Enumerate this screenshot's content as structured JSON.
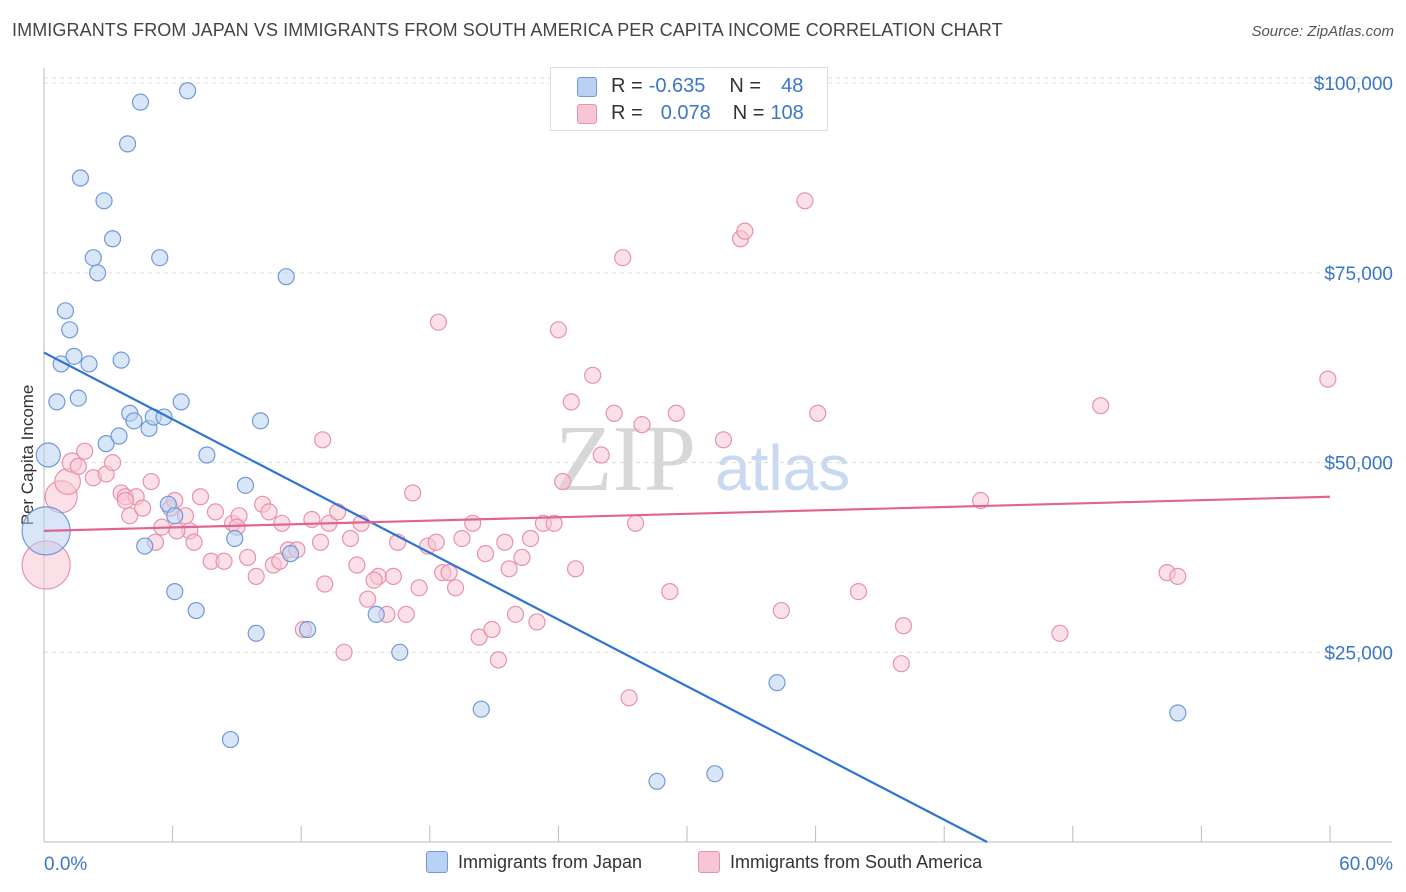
{
  "title": "IMMIGRANTS FROM JAPAN VS IMMIGRANTS FROM SOUTH AMERICA PER CAPITA INCOME CORRELATION CHART",
  "source": "Source: ZipAtlas.com",
  "watermark": {
    "zip": "ZIP",
    "atlas": "atlas"
  },
  "stats": {
    "japan": {
      "r_label": "R =",
      "r_value": "-0.635",
      "n_label": "N =",
      "n_value": "48"
    },
    "south_america": {
      "r_label": "R =",
      "r_value": "0.078",
      "n_label": "N =",
      "n_value": "108"
    }
  },
  "legend": {
    "japan": "Immigrants from Japan",
    "south_america": "Immigrants from South America"
  },
  "colors": {
    "japan_fill": "#b9d1f2",
    "japan_stroke": "#6f9ad8",
    "japan_line": "#2f74d0",
    "sa_fill": "#f7c6d4",
    "sa_stroke": "#e892ad",
    "sa_line": "#e0648f",
    "value_text": "#3b76c9"
  },
  "chart_data": {
    "type": "scatter",
    "title": "IMMIGRANTS FROM JAPAN VS IMMIGRANTS FROM SOUTH AMERICA PER CAPITA INCOME CORRELATION CHART",
    "xlabel": "",
    "ylabel": "Per Capita Income",
    "xlim": [
      0,
      60
    ],
    "ylim": [
      0,
      102000
    ],
    "x_tick_labels": [
      "0.0%",
      "60.0%"
    ],
    "y_ticks": [
      25000,
      50000,
      75000,
      100000
    ],
    "y_tick_labels": [
      "$25,000",
      "$50,000",
      "$75,000",
      "$100,000"
    ],
    "grid": true,
    "legend_position": "bottom-center",
    "series": [
      {
        "name": "Immigrants from Japan",
        "trend": {
          "x0": 0,
          "y0": 64500,
          "x1": 44,
          "y1": 0
        },
        "points": [
          [
            0.1,
            41000,
            3
          ],
          [
            0.2,
            51000,
            1.5
          ],
          [
            0.6,
            58000,
            1
          ],
          [
            0.8,
            63000,
            1
          ],
          [
            1.0,
            70000,
            1
          ],
          [
            1.2,
            67500,
            1
          ],
          [
            1.4,
            64000,
            1
          ],
          [
            1.6,
            58500,
            1
          ],
          [
            1.7,
            87500,
            1
          ],
          [
            2.1,
            63000,
            1
          ],
          [
            2.3,
            77000,
            1
          ],
          [
            2.5,
            75000,
            1
          ],
          [
            2.8,
            84500,
            1
          ],
          [
            2.9,
            52500,
            1
          ],
          [
            3.2,
            79500,
            1
          ],
          [
            3.5,
            53500,
            1
          ],
          [
            3.6,
            63500,
            1
          ],
          [
            3.9,
            92000,
            1
          ],
          [
            4.0,
            56500,
            1
          ],
          [
            4.2,
            55500,
            1
          ],
          [
            4.5,
            97500,
            1
          ],
          [
            4.7,
            39000,
            1
          ],
          [
            4.9,
            54500,
            1
          ],
          [
            5.1,
            56000,
            1
          ],
          [
            5.4,
            77000,
            1
          ],
          [
            5.6,
            56000,
            1
          ],
          [
            5.8,
            44500,
            1
          ],
          [
            6.1,
            43000,
            1
          ],
          [
            6.1,
            33000,
            1
          ],
          [
            6.4,
            58000,
            1
          ],
          [
            6.7,
            99000,
            1
          ],
          [
            7.1,
            30500,
            1
          ],
          [
            7.6,
            51000,
            1
          ],
          [
            8.7,
            13500,
            1
          ],
          [
            8.9,
            40000,
            1
          ],
          [
            9.4,
            47000,
            1
          ],
          [
            9.9,
            27500,
            1
          ],
          [
            10.1,
            55500,
            1
          ],
          [
            11.3,
            74500,
            1
          ],
          [
            11.5,
            38000,
            1
          ],
          [
            12.3,
            28000,
            1
          ],
          [
            15.5,
            30000,
            1
          ],
          [
            16.6,
            25000,
            1
          ],
          [
            20.4,
            17500,
            1
          ],
          [
            28.6,
            8000,
            1
          ],
          [
            31.3,
            9000,
            1
          ],
          [
            34.2,
            21000,
            1
          ],
          [
            52.9,
            17000,
            1
          ]
        ]
      },
      {
        "name": "Immigrants from South America",
        "trend": {
          "x0": 0,
          "y0": 41000,
          "x1": 60,
          "y1": 45500
        },
        "points": [
          [
            0.1,
            36500,
            3
          ],
          [
            0.8,
            45500,
            2
          ],
          [
            1.1,
            47500,
            1.6
          ],
          [
            1.3,
            50000,
            1.2
          ],
          [
            1.6,
            49500,
            1
          ],
          [
            1.9,
            51500,
            1
          ],
          [
            2.3,
            48000,
            1
          ],
          [
            2.9,
            48500,
            1
          ],
          [
            3.2,
            50000,
            1
          ],
          [
            3.6,
            46000,
            1
          ],
          [
            3.8,
            45500,
            1
          ],
          [
            4.0,
            43000,
            1
          ],
          [
            4.3,
            45500,
            1
          ],
          [
            4.6,
            44000,
            1
          ],
          [
            5.0,
            47500,
            1
          ],
          [
            5.2,
            39500,
            1
          ],
          [
            5.5,
            41500,
            1
          ],
          [
            5.9,
            44000,
            1
          ],
          [
            6.1,
            45000,
            1
          ],
          [
            6.6,
            43000,
            1
          ],
          [
            6.8,
            41000,
            1
          ],
          [
            7.0,
            39500,
            1
          ],
          [
            7.3,
            45500,
            1
          ],
          [
            7.8,
            37000,
            1
          ],
          [
            8.0,
            43500,
            1
          ],
          [
            8.4,
            37000,
            1
          ],
          [
            8.8,
            42000,
            1
          ],
          [
            9.1,
            43000,
            1
          ],
          [
            9.5,
            37500,
            1
          ],
          [
            9.9,
            35000,
            1
          ],
          [
            10.2,
            44500,
            1
          ],
          [
            10.5,
            43500,
            1
          ],
          [
            10.7,
            36500,
            1
          ],
          [
            11.1,
            42000,
            1
          ],
          [
            11.4,
            38500,
            1
          ],
          [
            11.8,
            38500,
            1
          ],
          [
            12.1,
            28000,
            1
          ],
          [
            12.5,
            42500,
            1
          ],
          [
            12.9,
            39500,
            1
          ],
          [
            13.1,
            34000,
            1
          ],
          [
            13.3,
            42000,
            1
          ],
          [
            13.7,
            43500,
            1
          ],
          [
            14.0,
            25000,
            1
          ],
          [
            14.3,
            40000,
            1
          ],
          [
            14.6,
            36500,
            1
          ],
          [
            14.8,
            42000,
            1
          ],
          [
            15.1,
            32000,
            1
          ],
          [
            15.6,
            35000,
            1
          ],
          [
            16.0,
            30000,
            1
          ],
          [
            16.3,
            35000,
            1
          ],
          [
            16.5,
            39500,
            1
          ],
          [
            16.9,
            30000,
            1
          ],
          [
            17.2,
            46000,
            1
          ],
          [
            17.5,
            33500,
            1
          ],
          [
            17.9,
            39000,
            1
          ],
          [
            18.3,
            39500,
            1
          ],
          [
            18.6,
            35500,
            1
          ],
          [
            18.9,
            35500,
            1
          ],
          [
            19.2,
            33500,
            1
          ],
          [
            19.5,
            40000,
            1
          ],
          [
            20.0,
            42000,
            1
          ],
          [
            20.3,
            27000,
            1
          ],
          [
            20.6,
            38000,
            1
          ],
          [
            20.9,
            28000,
            1
          ],
          [
            21.2,
            24000,
            1
          ],
          [
            21.5,
            39500,
            1
          ],
          [
            21.7,
            36000,
            1
          ],
          [
            22.0,
            30000,
            1
          ],
          [
            22.3,
            37500,
            1
          ],
          [
            22.7,
            40000,
            1
          ],
          [
            23.0,
            29000,
            1
          ],
          [
            23.3,
            42000,
            1
          ],
          [
            23.8,
            42000,
            1
          ],
          [
            24.2,
            47500,
            1
          ],
          [
            24.6,
            58000,
            1
          ],
          [
            24.8,
            36000,
            1
          ],
          [
            25.6,
            61500,
            1
          ],
          [
            26.0,
            51000,
            1
          ],
          [
            26.6,
            56500,
            1
          ],
          [
            27.0,
            77000,
            1
          ],
          [
            27.3,
            19000,
            1
          ],
          [
            27.6,
            42000,
            1
          ],
          [
            27.9,
            55000,
            1
          ],
          [
            29.2,
            33000,
            1
          ],
          [
            29.5,
            56500,
            1
          ],
          [
            31.7,
            53000,
            1
          ],
          [
            32.5,
            79500,
            1
          ],
          [
            32.7,
            80500,
            1
          ],
          [
            34.4,
            30500,
            1
          ],
          [
            35.5,
            84500,
            1
          ],
          [
            36.1,
            56500,
            1
          ],
          [
            38.0,
            33000,
            1
          ],
          [
            40.0,
            23500,
            1
          ],
          [
            40.1,
            28500,
            1
          ],
          [
            43.7,
            45000,
            1
          ],
          [
            47.4,
            27500,
            1
          ],
          [
            49.3,
            57500,
            1
          ],
          [
            52.4,
            35500,
            1
          ],
          [
            52.9,
            35000,
            1
          ],
          [
            59.9,
            61000,
            1
          ],
          [
            3.8,
            45000,
            1
          ],
          [
            13.0,
            53000,
            1
          ],
          [
            18.4,
            68500,
            1
          ],
          [
            24.0,
            67500,
            1
          ],
          [
            9.0,
            41500,
            1
          ],
          [
            6.2,
            41000,
            1
          ],
          [
            15.4,
            34500,
            1
          ],
          [
            11.0,
            37000,
            1
          ]
        ]
      }
    ]
  }
}
